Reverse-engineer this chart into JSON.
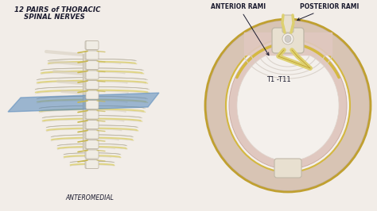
{
  "bg_color": "#f2ede8",
  "title_left_line1": "12 PAIRS of THORACIC",
  "title_left_line2": "SPINAL NERVES",
  "label_anteromedial": "ANTEROMEDIAL",
  "label_anterior_rami": "ANTERIOR RAMI",
  "label_posterior_rami": "POSTERIOR RAMI",
  "label_t1_t11": "T1 -T11",
  "text_color": "#1a1a2e",
  "bone_white": "#f0ece4",
  "bone_shadow": "#d8d0c0",
  "bone_outline": "#b8b0a0",
  "nerve_yellow": "#c8b850",
  "nerve_light": "#ddd070",
  "blue_plane": "#5588bb",
  "blue_plane_alpha": 0.55,
  "outer_skin": "#d8c4b4",
  "outer_skin2": "#c8b4a4",
  "inner_pink": "#e0c8c0",
  "inner_white": "#f4f0ec",
  "gold_line": "#c0a030",
  "gold_line2": "#d4b840",
  "spine_bone": "#e8e0d0",
  "spine_outline": "#c0b8a8",
  "spinal_cord": "#d0ccc8",
  "rib_front_shadow": "#c8c0b0",
  "sternum_color": "#e0d8c8"
}
